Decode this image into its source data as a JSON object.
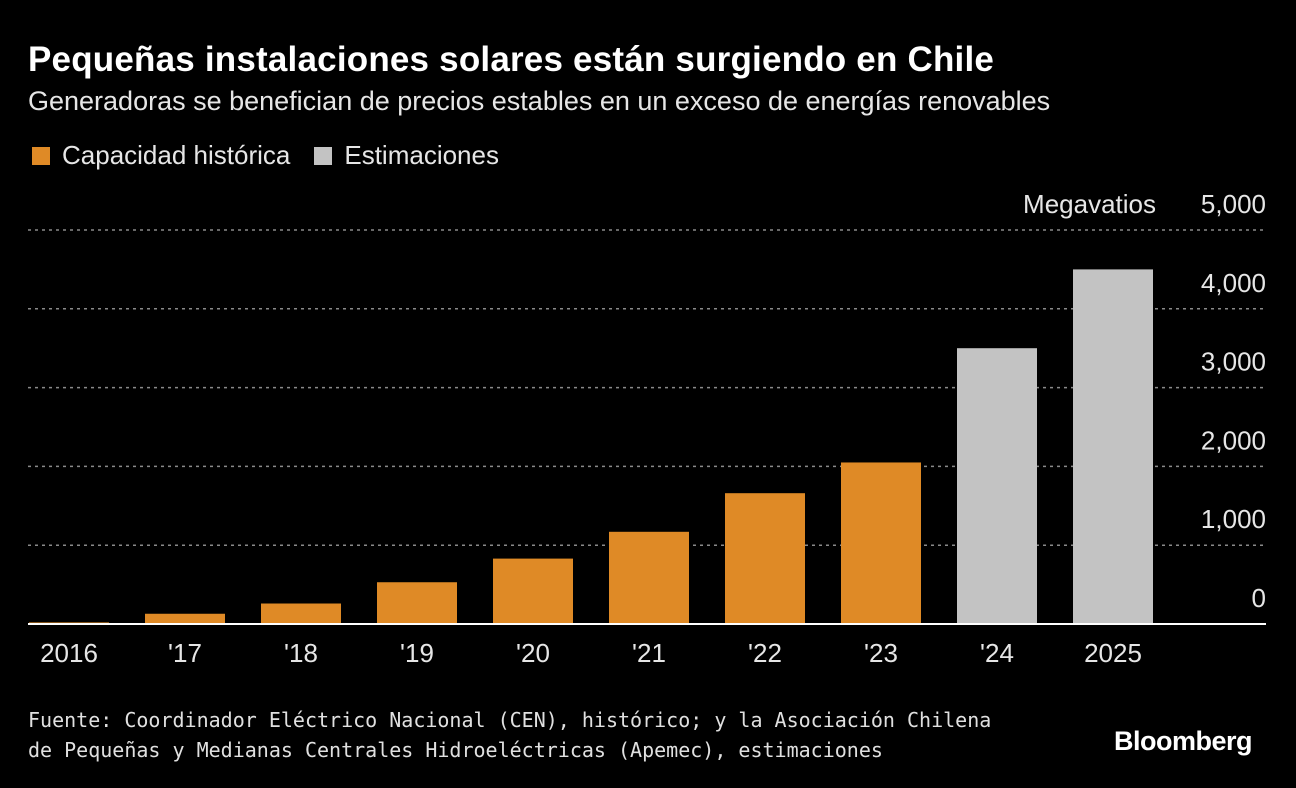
{
  "header": {
    "title": "Pequeñas instalaciones solares están surgiendo en Chile",
    "subtitle": "Generadoras se benefician de precios estables en un exceso de energías renovables"
  },
  "colors": {
    "background": "#000000",
    "historical": "#df8a26",
    "estimate": "#c3c3c3",
    "grid": "#8a8a8a"
  },
  "chart_data": {
    "type": "bar",
    "categories": [
      "2016",
      "'17",
      "'18",
      "'19",
      "'20",
      "'21",
      "'22",
      "'23",
      "'24",
      "2025"
    ],
    "series": [
      {
        "name": "Capacidad histórica",
        "values": [
          20,
          130,
          260,
          530,
          830,
          1170,
          1660,
          2050,
          null,
          null
        ]
      },
      {
        "name": "Estimaciones",
        "values": [
          null,
          null,
          null,
          null,
          null,
          null,
          null,
          null,
          3500,
          4500
        ]
      }
    ],
    "unit_label": "Megavatios",
    "yticks": [
      "0",
      "1,000",
      "2,000",
      "3,000",
      "4,000",
      "5,000"
    ],
    "ylim": [
      0,
      5000
    ],
    "grid": true,
    "legend_position": "top-left"
  },
  "footer": {
    "source_line1": "Fuente: Coordinador Eléctrico Nacional (CEN), histórico; y la Asociación Chilena",
    "source_line2": "de Pequeñas y Medianas Centrales Hidroeléctricas (Apemec), estimaciones",
    "brand": "Bloomberg"
  }
}
